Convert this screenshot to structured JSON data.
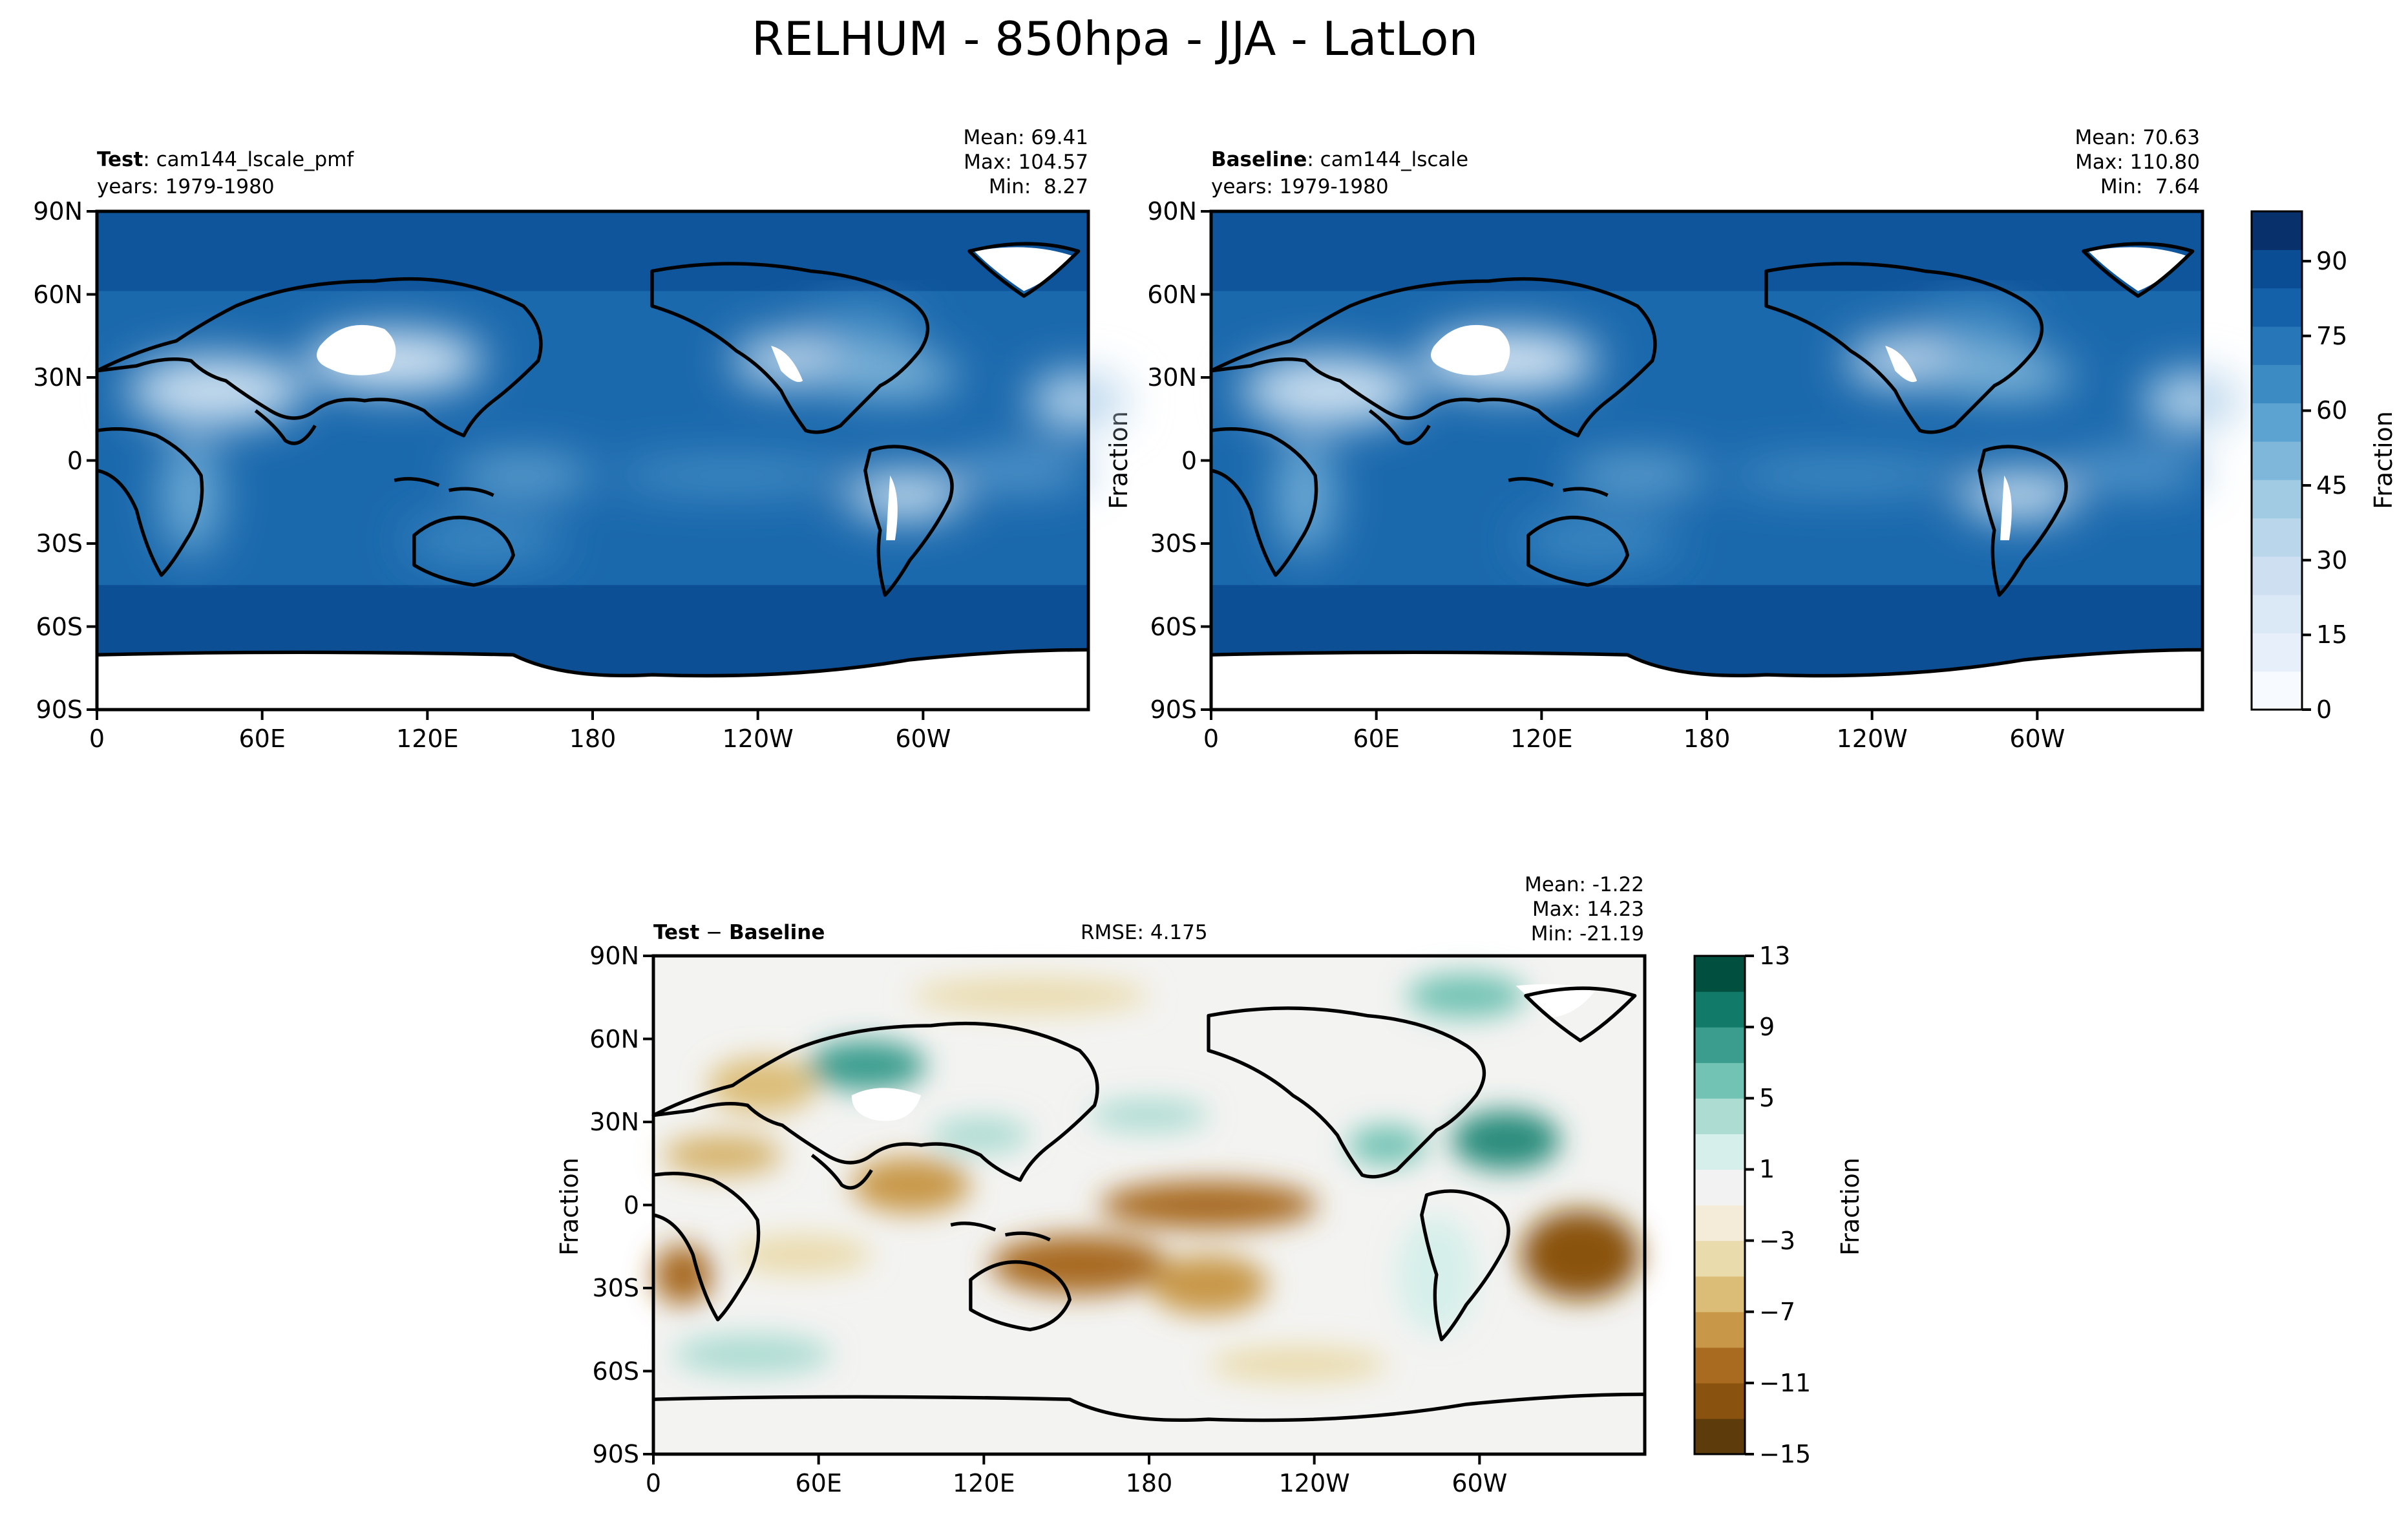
{
  "figure": {
    "title": "RELHUM - 850hpa - JJA - LatLon"
  },
  "panels": {
    "test": {
      "label_bold": "Test",
      "label_rest": ": cam144_lscale_pmf",
      "years": "years: 1979-1980",
      "stats": [
        "Mean: 69.41",
        "Max: 104.57",
        "Min:  8.27"
      ]
    },
    "baseline": {
      "label_bold": "Baseline",
      "label_rest": ": cam144_lscale",
      "years": "years: 1979-1980",
      "stats": [
        "Mean: 70.63",
        "Max: 110.80",
        "Min:  7.64"
      ],
      "ylabel": "Fraction"
    },
    "diff": {
      "label_bold": "Test",
      "label_sep": " − ",
      "label_bold2": "Baseline",
      "rmse": "RMSE: 4.175",
      "stats": [
        "Mean: -1.22",
        "Max: 14.23",
        "Min: -21.19"
      ],
      "ylabel": "Fraction"
    }
  },
  "axes": {
    "lat_ticks": [
      "90N",
      "60N",
      "30N",
      "0",
      "30S",
      "60S",
      "90S"
    ],
    "lon_ticks": [
      "0",
      "60E",
      "120E",
      "180",
      "120W",
      "60W"
    ]
  },
  "colorbars": {
    "relhum": {
      "label": "Fraction",
      "ticks": [
        "0",
        "15",
        "30",
        "45",
        "60",
        "75",
        "90"
      ],
      "range": [
        0,
        100
      ],
      "colors": [
        "#f7fbff",
        "#e7f0fa",
        "#dbe9f6",
        "#cddff1",
        "#bad6eb",
        "#a0cbe2",
        "#7fb7da",
        "#5da3d1",
        "#3c8cc3",
        "#2676b8",
        "#1561a9",
        "#0b4d94",
        "#08306b"
      ]
    },
    "diff": {
      "label": "Fraction",
      "ticks": [
        "13",
        "9",
        "5",
        "1",
        "−3",
        "−7",
        "−11",
        "−15"
      ],
      "levels": [
        -15,
        -13,
        -11,
        -9,
        -7,
        -5,
        -3,
        -1,
        1,
        3,
        5,
        7,
        9,
        11,
        13
      ],
      "colors": [
        "#5e3b0b",
        "#8a520f",
        "#a86b20",
        "#c89848",
        "#dcbd78",
        "#eadbad",
        "#f4ecd8",
        "#f2f2f2",
        "#d6efea",
        "#acdcd2",
        "#72c3b4",
        "#3a9d8e",
        "#127a68",
        "#01503f"
      ]
    }
  },
  "chart_data": [
    {
      "type": "heatmap",
      "title": "Test: cam144_lscale_pmf",
      "variable": "RELHUM",
      "level": "850hpa",
      "season": "JJA",
      "years": "1979-1980",
      "mean": 69.41,
      "max": 104.57,
      "min": 8.27,
      "xlim": [
        0,
        360
      ],
      "ylim": [
        -90,
        90
      ]
    },
    {
      "type": "heatmap",
      "title": "Baseline: cam144_lscale",
      "variable": "RELHUM",
      "level": "850hpa",
      "season": "JJA",
      "years": "1979-1980",
      "mean": 70.63,
      "max": 110.8,
      "min": 7.64,
      "xlim": [
        0,
        360
      ],
      "ylim": [
        -90,
        90
      ]
    },
    {
      "type": "heatmap",
      "title": "Test − Baseline",
      "rmse": 4.175,
      "mean": -1.22,
      "max": 14.23,
      "min": -21.19,
      "xlim": [
        0,
        360
      ],
      "ylim": [
        -90,
        90
      ]
    }
  ]
}
